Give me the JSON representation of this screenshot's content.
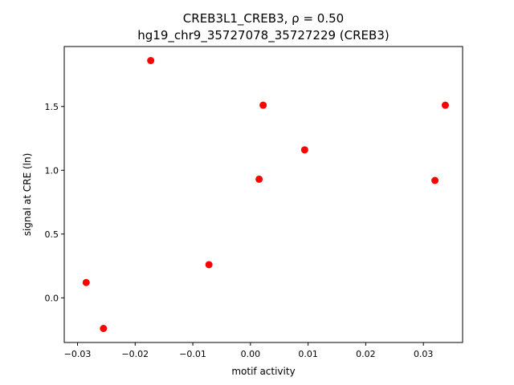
{
  "chart_data": {
    "type": "scatter",
    "title_line1": "CREB3L1_CREB3, ρ = 0.50",
    "title_line2": "hg19_chr9_35727078_35727229 (CREB3)",
    "xlabel": "motif activity",
    "ylabel": "signal at CRE (ln)",
    "xlim": [
      -0.0323,
      0.0368
    ],
    "ylim": [
      -0.35,
      1.97
    ],
    "xticks": [
      -0.03,
      -0.02,
      -0.01,
      0.0,
      0.01,
      0.02,
      0.03
    ],
    "xtick_labels": [
      "−0.03",
      "−0.02",
      "−0.01",
      "0.00",
      "0.01",
      "0.02",
      "0.03"
    ],
    "yticks": [
      0.0,
      0.5,
      1.0,
      1.5
    ],
    "ytick_labels": [
      "0.0",
      "0.5",
      "1.0",
      "1.5"
    ],
    "grid": false,
    "point_color": "#ff0000",
    "points": [
      {
        "x": -0.0285,
        "y": 0.12
      },
      {
        "x": -0.0255,
        "y": -0.24
      },
      {
        "x": -0.0173,
        "y": 1.86
      },
      {
        "x": -0.0072,
        "y": 0.26
      },
      {
        "x": 0.0015,
        "y": 0.93
      },
      {
        "x": 0.0022,
        "y": 1.51
      },
      {
        "x": 0.0094,
        "y": 1.16
      },
      {
        "x": 0.032,
        "y": 0.92
      },
      {
        "x": 0.0338,
        "y": 1.51
      }
    ]
  }
}
